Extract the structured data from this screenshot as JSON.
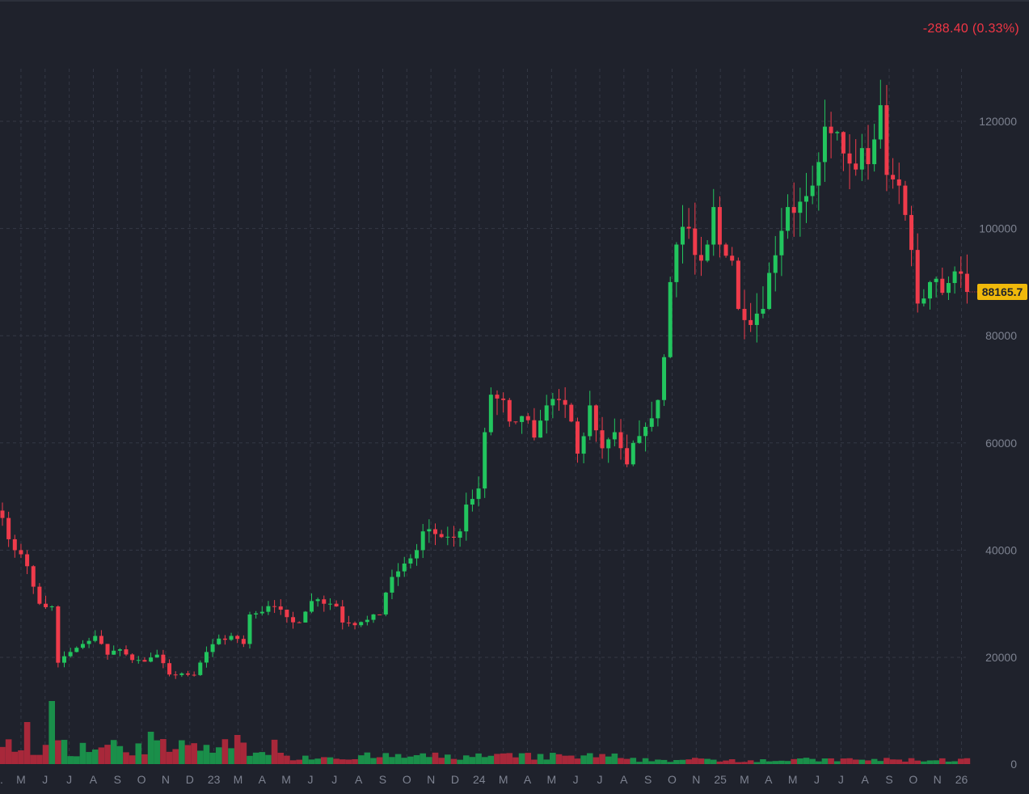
{
  "header": {
    "change_text": "-288.40 (0.33%)"
  },
  "colors": {
    "background": "#1f222c",
    "up": "#22c55e",
    "down": "#ef3b4b",
    "up_volume": "#1a8f4a",
    "down_volume": "#a8283a",
    "grid": "#343845",
    "axis_text": "#7d8290",
    "price_tag_bg": "#f0b90b",
    "price_tag_text": "#1f222c"
  },
  "chart_data": {
    "type": "candlestick",
    "interval": "weekly",
    "last_price_label": "88165.7",
    "y_ticks": [
      0,
      20000,
      40000,
      60000,
      80000,
      100000,
      120000
    ],
    "x_ticks": [
      "M",
      "J",
      "J",
      "A",
      "S",
      "O",
      "N",
      "D",
      "23",
      "M",
      "A",
      "M",
      "J",
      "J",
      "A",
      "S",
      "O",
      "N",
      "D",
      "24",
      "M",
      "A",
      "M",
      "J",
      "J",
      "A",
      "S",
      "O",
      "N",
      "25",
      "M",
      "A",
      "M",
      "J",
      "J",
      "A",
      "S",
      "O",
      "N",
      "26"
    ],
    "ylim": [
      0,
      130000
    ],
    "grid": true,
    "close_anchors": [
      {
        "w": 0,
        "c": 46000
      },
      {
        "w": 2,
        "c": 40000
      },
      {
        "w": 4,
        "c": 37000
      },
      {
        "w": 6,
        "c": 30000
      },
      {
        "w": 8,
        "c": 29500
      },
      {
        "w": 9,
        "c": 19000
      },
      {
        "w": 11,
        "c": 21000
      },
      {
        "w": 13,
        "c": 22500
      },
      {
        "w": 15,
        "c": 24000
      },
      {
        "w": 17,
        "c": 20500
      },
      {
        "w": 19,
        "c": 21500
      },
      {
        "w": 21,
        "c": 19500
      },
      {
        "w": 23,
        "c": 19200
      },
      {
        "w": 25,
        "c": 20500
      },
      {
        "w": 27,
        "c": 16800
      },
      {
        "w": 29,
        "c": 17000
      },
      {
        "w": 31,
        "c": 16700
      },
      {
        "w": 33,
        "c": 21000
      },
      {
        "w": 35,
        "c": 23500
      },
      {
        "w": 37,
        "c": 24000
      },
      {
        "w": 39,
        "c": 22500
      },
      {
        "w": 40,
        "c": 28000
      },
      {
        "w": 42,
        "c": 28500
      },
      {
        "w": 44,
        "c": 29500
      },
      {
        "w": 46,
        "c": 27500
      },
      {
        "w": 48,
        "c": 26500
      },
      {
        "w": 50,
        "c": 30500
      },
      {
        "w": 52,
        "c": 30000
      },
      {
        "w": 54,
        "c": 29500
      },
      {
        "w": 55,
        "c": 26500
      },
      {
        "w": 57,
        "c": 26000
      },
      {
        "w": 59,
        "c": 27000
      },
      {
        "w": 61,
        "c": 28000
      },
      {
        "w": 63,
        "c": 35000
      },
      {
        "w": 65,
        "c": 37500
      },
      {
        "w": 67,
        "c": 40000
      },
      {
        "w": 68,
        "c": 43500
      },
      {
        "w": 70,
        "c": 43000
      },
      {
        "w": 72,
        "c": 42500
      },
      {
        "w": 74,
        "c": 43500
      },
      {
        "w": 75,
        "c": 48500
      },
      {
        "w": 77,
        "c": 51500
      },
      {
        "w": 78,
        "c": 62000
      },
      {
        "w": 79,
        "c": 69000
      },
      {
        "w": 81,
        "c": 68000
      },
      {
        "w": 82,
        "c": 64000
      },
      {
        "w": 84,
        "c": 65000
      },
      {
        "w": 86,
        "c": 61000
      },
      {
        "w": 88,
        "c": 67000
      },
      {
        "w": 90,
        "c": 68000
      },
      {
        "w": 92,
        "c": 64000
      },
      {
        "w": 93,
        "c": 58000
      },
      {
        "w": 95,
        "c": 67000
      },
      {
        "w": 97,
        "c": 59000
      },
      {
        "w": 99,
        "c": 62000
      },
      {
        "w": 101,
        "c": 56000
      },
      {
        "w": 102,
        "c": 60000
      },
      {
        "w": 104,
        "c": 63000
      },
      {
        "w": 106,
        "c": 68000
      },
      {
        "w": 107,
        "c": 76000
      },
      {
        "w": 108,
        "c": 90000
      },
      {
        "w": 109,
        "c": 97000
      },
      {
        "w": 111,
        "c": 100000
      },
      {
        "w": 113,
        "c": 94000
      },
      {
        "w": 114,
        "c": 97000
      },
      {
        "w": 115,
        "c": 104000
      },
      {
        "w": 116,
        "c": 97000
      },
      {
        "w": 118,
        "c": 94000
      },
      {
        "w": 119,
        "c": 85000
      },
      {
        "w": 121,
        "c": 82000
      },
      {
        "w": 123,
        "c": 85000
      },
      {
        "w": 125,
        "c": 95000
      },
      {
        "w": 127,
        "c": 104000
      },
      {
        "w": 129,
        "c": 105000
      },
      {
        "w": 131,
        "c": 108000
      },
      {
        "w": 133,
        "c": 119000
      },
      {
        "w": 135,
        "c": 118000
      },
      {
        "w": 136,
        "c": 114000
      },
      {
        "w": 138,
        "c": 111000
      },
      {
        "w": 139,
        "c": 115000
      },
      {
        "w": 140,
        "c": 112000
      },
      {
        "w": 142,
        "c": 123000
      },
      {
        "w": 143,
        "c": 110000
      },
      {
        "w": 145,
        "c": 108000
      },
      {
        "w": 147,
        "c": 96000
      },
      {
        "w": 148,
        "c": 86000
      },
      {
        "w": 150,
        "c": 90000
      },
      {
        "w": 152,
        "c": 88000
      },
      {
        "w": 154,
        "c": 92000
      },
      {
        "w": 156,
        "c": 88165.7
      }
    ]
  }
}
